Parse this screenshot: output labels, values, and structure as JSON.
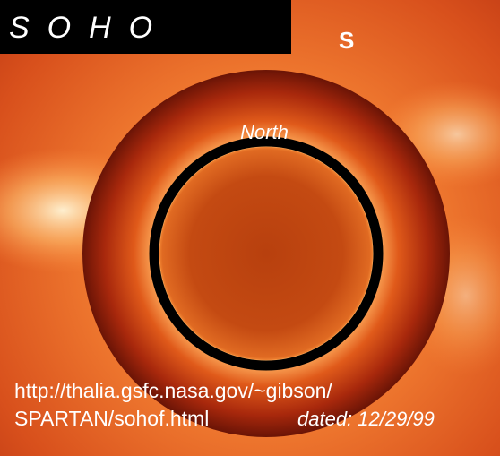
{
  "logo": "SOHO",
  "corner_letter": "S",
  "direction_label": "North",
  "caption": {
    "url_line1": "http://thalia.gsfc.nasa.gov/~gibson/",
    "url_line2": "SPARTAN/sohof.html",
    "date": "dated: 12/29/99"
  }
}
